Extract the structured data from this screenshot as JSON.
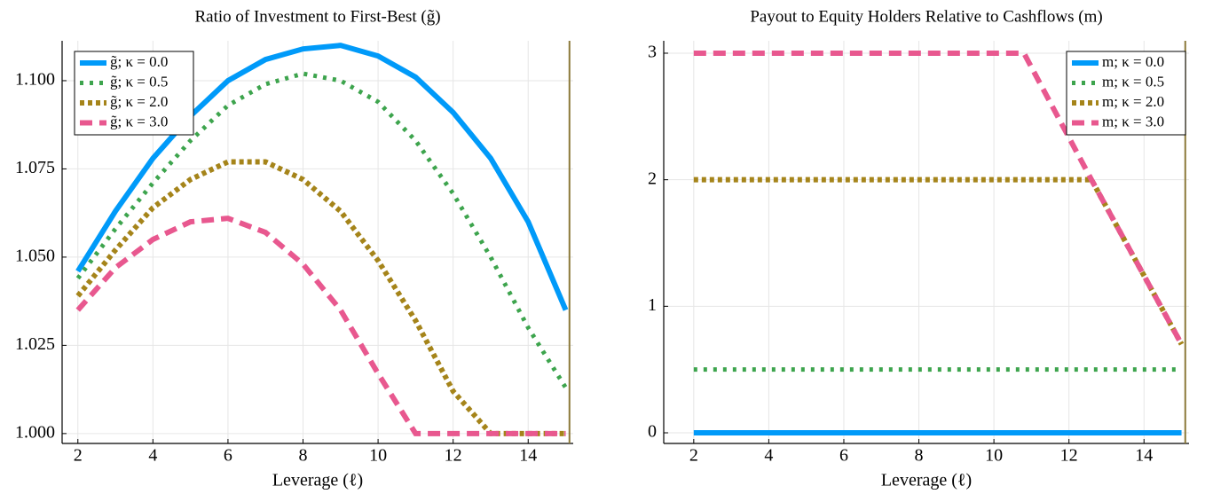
{
  "chart_data": [
    {
      "type": "line",
      "title": "Ratio of Investment to First-Best (g̃)",
      "xlabel": "Leverage (ℓ)",
      "x": [
        2,
        3,
        4,
        5,
        6,
        7,
        8,
        9,
        10,
        11,
        12,
        13,
        14,
        15
      ],
      "series": [
        {
          "name": "g̃; κ = 0.0",
          "color": "#009af9",
          "style": "solid",
          "values": [
            1.046,
            1.063,
            1.078,
            1.09,
            1.1,
            1.106,
            1.109,
            1.11,
            1.107,
            1.101,
            1.091,
            1.078,
            1.06,
            1.035
          ]
        },
        {
          "name": "g̃; κ = 0.5",
          "color": "#3da44d",
          "style": "dot",
          "values": [
            1.044,
            1.058,
            1.071,
            1.083,
            1.093,
            1.099,
            1.102,
            1.1,
            1.094,
            1.083,
            1.068,
            1.05,
            1.03,
            1.013
          ]
        },
        {
          "name": "g̃; κ = 2.0",
          "color": "#a5841a",
          "style": "short",
          "values": [
            1.039,
            1.052,
            1.064,
            1.072,
            1.077,
            1.077,
            1.072,
            1.063,
            1.049,
            1.032,
            1.012,
            1.0,
            1.0,
            1.0
          ]
        },
        {
          "name": "g̃; κ = 3.0",
          "color": "#e8588f",
          "style": "dash",
          "values": [
            1.035,
            1.047,
            1.055,
            1.06,
            1.061,
            1.057,
            1.048,
            1.035,
            1.017,
            1.0,
            1.0,
            1.0,
            1.0,
            1.0
          ]
        }
      ],
      "xlim": [
        1.58,
        15.2
      ],
      "xticks": [
        2,
        4,
        6,
        8,
        10,
        12,
        14
      ],
      "ylim": [
        0.9972,
        1.1113
      ],
      "yticks": [
        {
          "value": 1,
          "label": "1.000"
        },
        1.025,
        {
          "value": 1.05,
          "label": "1.050"
        },
        1.075,
        {
          "value": 1.1,
          "label": "1.100"
        }
      ],
      "vline": 15.1,
      "vline_color": "#8c7a3a",
      "grid": true,
      "legend": "top-left"
    },
    {
      "type": "line",
      "title": "Payout to Equity Holders Relative to Cashflows (m)",
      "xlabel": "Leverage (ℓ)",
      "x": [
        2,
        10.8,
        12.6,
        15
      ],
      "series": [
        {
          "name": "m; κ = 0.0",
          "color": "#009af9",
          "style": "solid",
          "values": [
            0,
            0,
            0,
            0
          ]
        },
        {
          "name": "m; κ = 0.5",
          "color": "#3da44d",
          "style": "dot",
          "values": [
            0.5,
            0.5,
            0.5,
            0.5
          ]
        },
        {
          "name": "m; κ = 2.0",
          "color": "#a5841a",
          "style": "short",
          "values": [
            2,
            2,
            2,
            0.7
          ]
        },
        {
          "name": "m; κ = 3.0",
          "color": "#e8588f",
          "style": "dash",
          "values": [
            3,
            3,
            2,
            0.7
          ]
        }
      ],
      "xlim": [
        1.2,
        15.2
      ],
      "xticks": [
        2,
        4,
        6,
        8,
        10,
        12,
        14
      ],
      "ylim": [
        -0.084,
        3.098
      ],
      "yticks": [
        0,
        1,
        2,
        3
      ],
      "vline": 15.1,
      "vline_color": "#8c7a3a",
      "grid": true,
      "legend": "top-right"
    }
  ]
}
